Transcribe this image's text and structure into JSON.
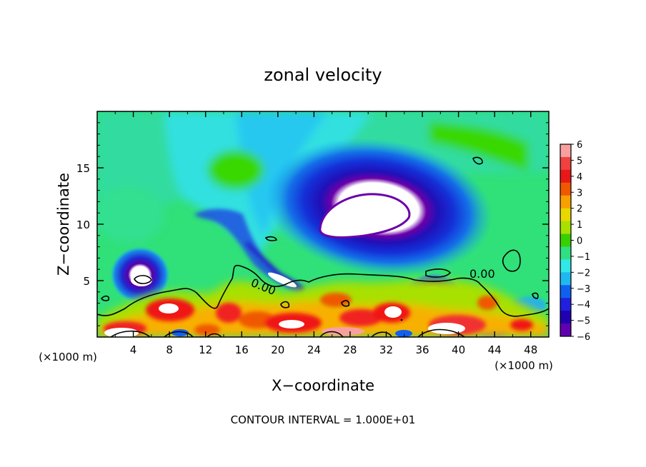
{
  "chart_data": {
    "type": "heatmap",
    "title": "zonal velocity",
    "xlabel": "X−coordinate",
    "ylabel": "Z−coordinate",
    "x_unit_label": "(×1000 m)",
    "y_unit_label": "(×1000 m)",
    "xlim": [
      0,
      50
    ],
    "ylim": [
      0,
      20
    ],
    "x_ticks": [
      4,
      8,
      12,
      16,
      20,
      24,
      28,
      32,
      36,
      40,
      44,
      48
    ],
    "y_ticks": [
      5,
      10,
      15
    ],
    "colorbar": {
      "ticks": [
        "6",
        "5",
        "4",
        "3",
        "2",
        "1",
        "0",
        "−1",
        "−2",
        "−3",
        "−4",
        "−5",
        "−6"
      ],
      "colors": [
        "#f8a0a0",
        "#f04040",
        "#e81818",
        "#f05800",
        "#f8a000",
        "#e8d800",
        "#a8e000",
        "#38d000",
        "#30e080",
        "#30e8e8",
        "#20b8f0",
        "#1060f0",
        "#2020e0",
        "#2000b0",
        "#6000b0"
      ]
    },
    "contour_labels": [
      "0.00",
      "0.00"
    ],
    "footer": "CONTOUR INTERVAL = 1.000E+01"
  }
}
